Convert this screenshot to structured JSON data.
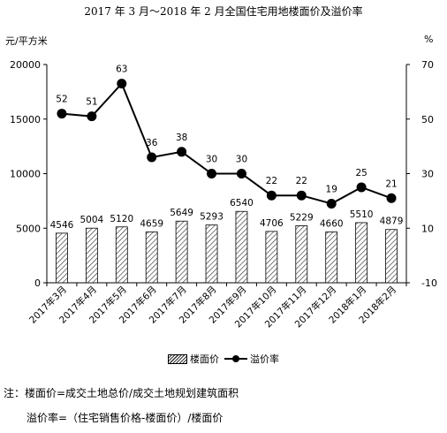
{
  "chart_data": {
    "type": "bar+line",
    "title": "2017 年 3 月～2018 年 2 月全国住宅用地楼面价及溢价率",
    "ylabel_left": "元/平方米",
    "ylabel_right": "%",
    "categories": [
      "2017年3月",
      "2017年4月",
      "2017年5月",
      "2017年6月",
      "2017年7月",
      "2017年8月",
      "2017年9月",
      "2017年10月",
      "2017年11月",
      "2017年12月",
      "2018年1月",
      "2018年2月"
    ],
    "left_axis": {
      "ylim": [
        0,
        20000
      ],
      "ticks": [
        "0",
        "5000",
        "10000",
        "15000",
        "20000"
      ]
    },
    "right_axis": {
      "ylim": [
        -10,
        70
      ],
      "ticks": [
        "-10",
        "10",
        "30",
        "50",
        "70"
      ]
    },
    "series": [
      {
        "name": "楼面价",
        "type": "bar",
        "axis": "left",
        "values": [
          4546,
          5004,
          5120,
          4659,
          5649,
          5293,
          6540,
          4706,
          5229,
          4660,
          5510,
          4879
        ]
      },
      {
        "name": "溢价率",
        "type": "line",
        "axis": "right",
        "values": [
          52,
          51,
          63,
          36,
          38,
          30,
          30,
          22,
          22,
          19,
          25,
          21
        ]
      }
    ],
    "legend": "bottom",
    "grid": false
  },
  "notes": {
    "line1": "注：楼面价=成交土地总价/成交土地规划建筑面积",
    "line2": "溢价率=（住宅销售价格-楼面价）/楼面价"
  }
}
